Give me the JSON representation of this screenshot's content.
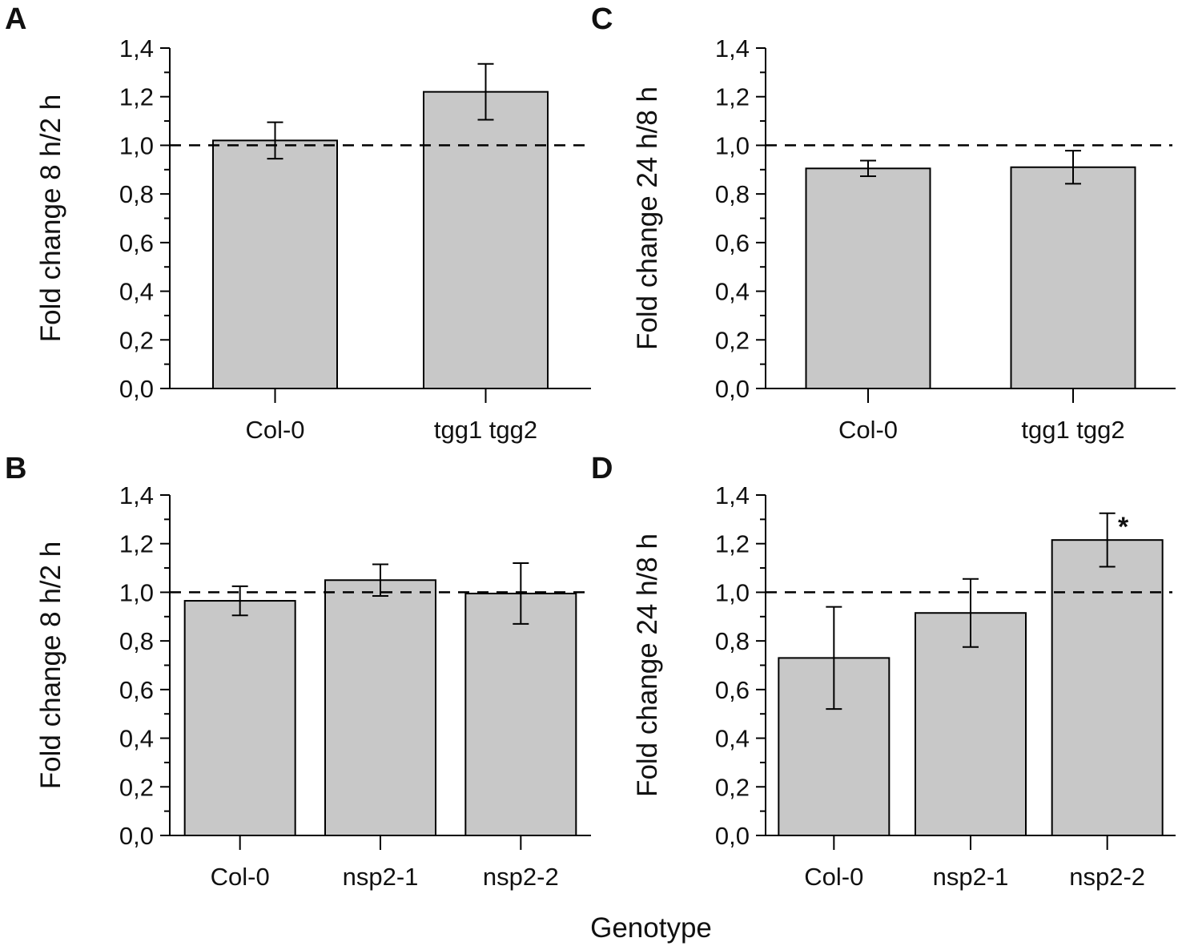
{
  "figure": {
    "shared_xlabel": "Genotype"
  },
  "chart_data": [
    {
      "id": "A",
      "type": "bar",
      "panel_label": "A",
      "title": "",
      "ylabel": "Fold change 8 h/2 h",
      "xlabel": "",
      "ylim": [
        0,
        1.4
      ],
      "yticks": [
        "0,0",
        "0,2",
        "0,4",
        "0,6",
        "0,8",
        "1,0",
        "1,2",
        "1,4"
      ],
      "reference_line": 1.0,
      "categories": [
        "Col-0",
        "tgg1 tgg2"
      ],
      "values": [
        1.02,
        1.22
      ],
      "errors": [
        0.075,
        0.115
      ],
      "significance": [
        "",
        ""
      ],
      "colors": {
        "bar": "#c8c8c8",
        "edge": "#000000"
      }
    },
    {
      "id": "B",
      "type": "bar",
      "panel_label": "B",
      "title": "",
      "ylabel": "Fold change 8 h/2 h",
      "xlabel": "",
      "ylim": [
        0,
        1.4
      ],
      "yticks": [
        "0,0",
        "0,2",
        "0,4",
        "0,6",
        "0,8",
        "1,0",
        "1,2",
        "1,4"
      ],
      "reference_line": 1.0,
      "categories": [
        "Col-0",
        "nsp2-1",
        "nsp2-2"
      ],
      "values": [
        0.965,
        1.05,
        0.995
      ],
      "errors": [
        0.06,
        0.065,
        0.125
      ],
      "significance": [
        "",
        "",
        ""
      ],
      "colors": {
        "bar": "#c8c8c8",
        "edge": "#000000"
      }
    },
    {
      "id": "C",
      "type": "bar",
      "panel_label": "C",
      "title": "",
      "ylabel": "Fold change 24 h/8 h",
      "xlabel": "",
      "ylim": [
        0,
        1.4
      ],
      "yticks": [
        "0,0",
        "0,2",
        "0,4",
        "0,6",
        "0,8",
        "1,0",
        "1,2",
        "1,4"
      ],
      "reference_line": 1.0,
      "categories": [
        "Col-0",
        "tgg1 tgg2"
      ],
      "values": [
        0.905,
        0.91
      ],
      "errors": [
        0.032,
        0.068
      ],
      "significance": [
        "",
        ""
      ],
      "colors": {
        "bar": "#c8c8c8",
        "edge": "#000000"
      }
    },
    {
      "id": "D",
      "type": "bar",
      "panel_label": "D",
      "title": "",
      "ylabel": "Fold change 24 h/8 h",
      "xlabel": "",
      "ylim": [
        0,
        1.4
      ],
      "yticks": [
        "0,0",
        "0,2",
        "0,4",
        "0,6",
        "0,8",
        "1,0",
        "1,2",
        "1,4"
      ],
      "reference_line": 1.0,
      "categories": [
        "Col-0",
        "nsp2-1",
        "nsp2-2"
      ],
      "values": [
        0.73,
        0.915,
        1.215
      ],
      "errors": [
        0.21,
        0.14,
        0.11
      ],
      "significance": [
        "",
        "",
        "*"
      ],
      "colors": {
        "bar": "#c8c8c8",
        "edge": "#000000"
      }
    }
  ]
}
